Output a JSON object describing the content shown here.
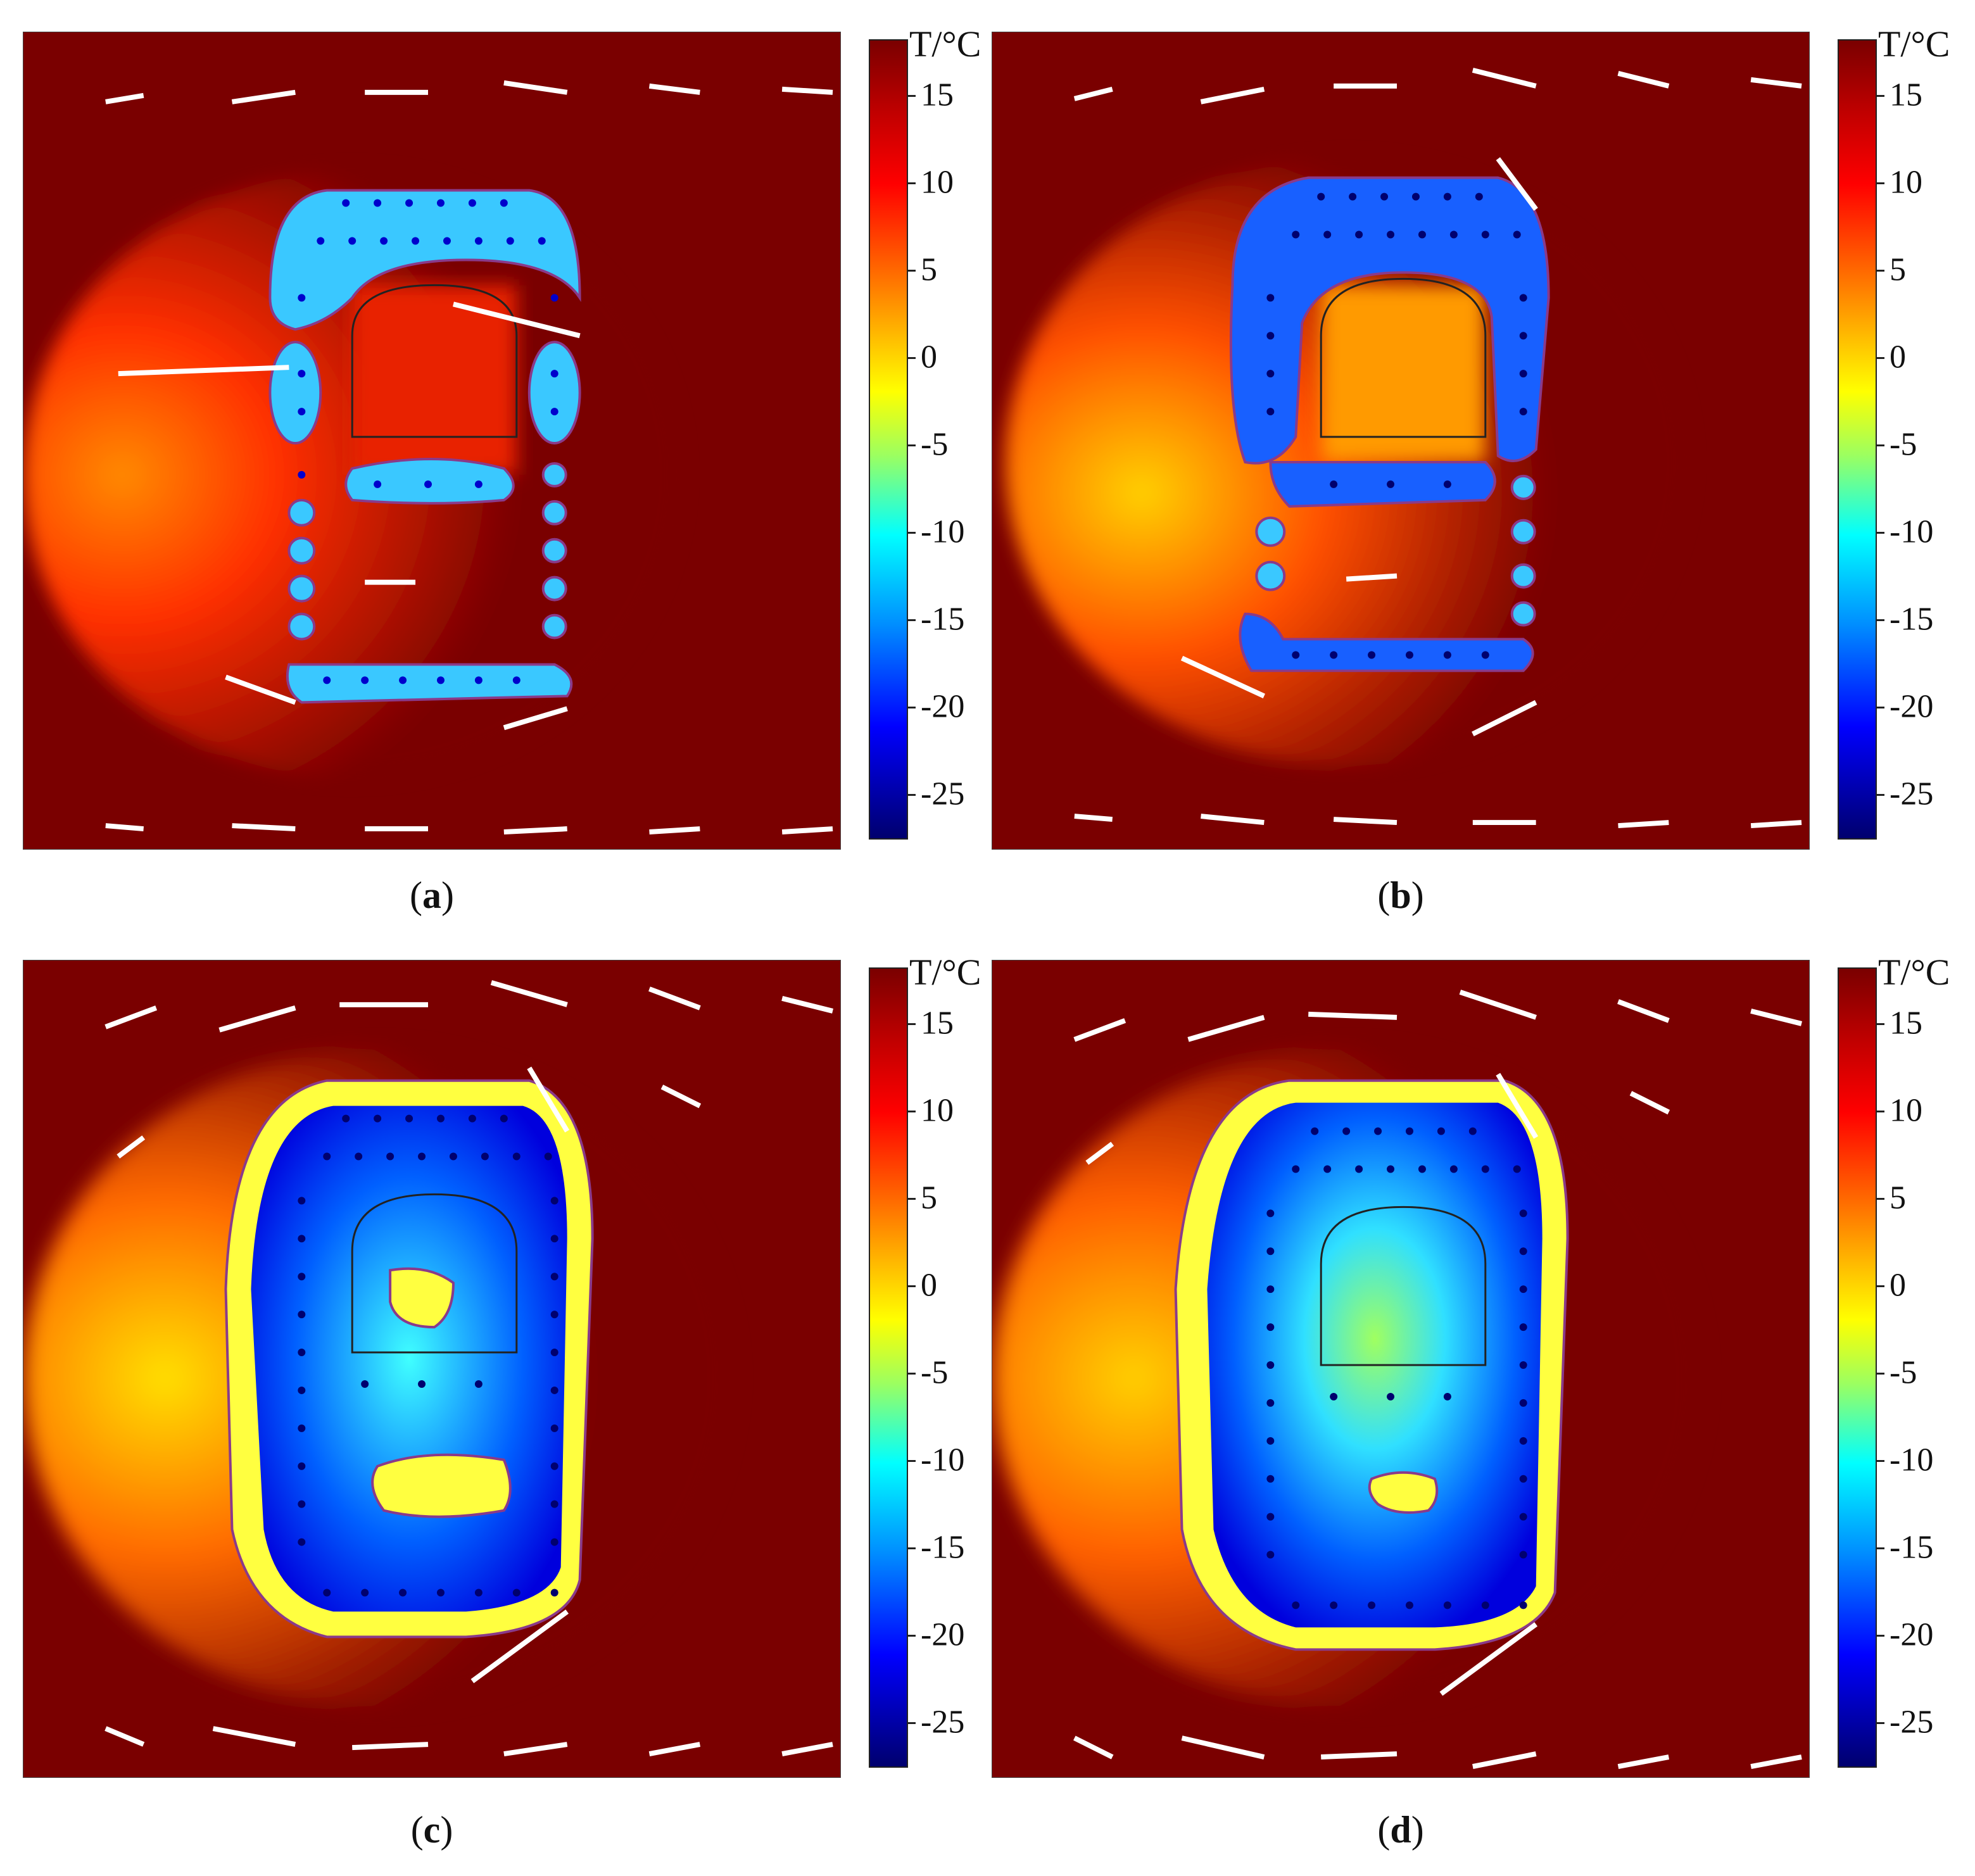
{
  "colorbar": {
    "title": "T/°C",
    "ticks": [
      "15",
      "10",
      "5",
      "0",
      "-5",
      "-10",
      "-15",
      "-20",
      "-25"
    ],
    "min": -29,
    "max": 18
  },
  "panels": [
    {
      "id": "a",
      "label_open": "(",
      "label_letter": "a",
      "label_close": ")"
    },
    {
      "id": "b",
      "label_open": "(",
      "label_letter": "b",
      "label_close": ")"
    },
    {
      "id": "c",
      "label_open": "(",
      "label_letter": "c",
      "label_close": ")"
    },
    {
      "id": "d",
      "label_open": "(",
      "label_letter": "d",
      "label_close": ")"
    }
  ],
  "colors": {
    "background_warm": "#7a0000",
    "outline": "#8a3a8a",
    "tunnel_outline": "#222222",
    "arrow": "#ffffff"
  }
}
